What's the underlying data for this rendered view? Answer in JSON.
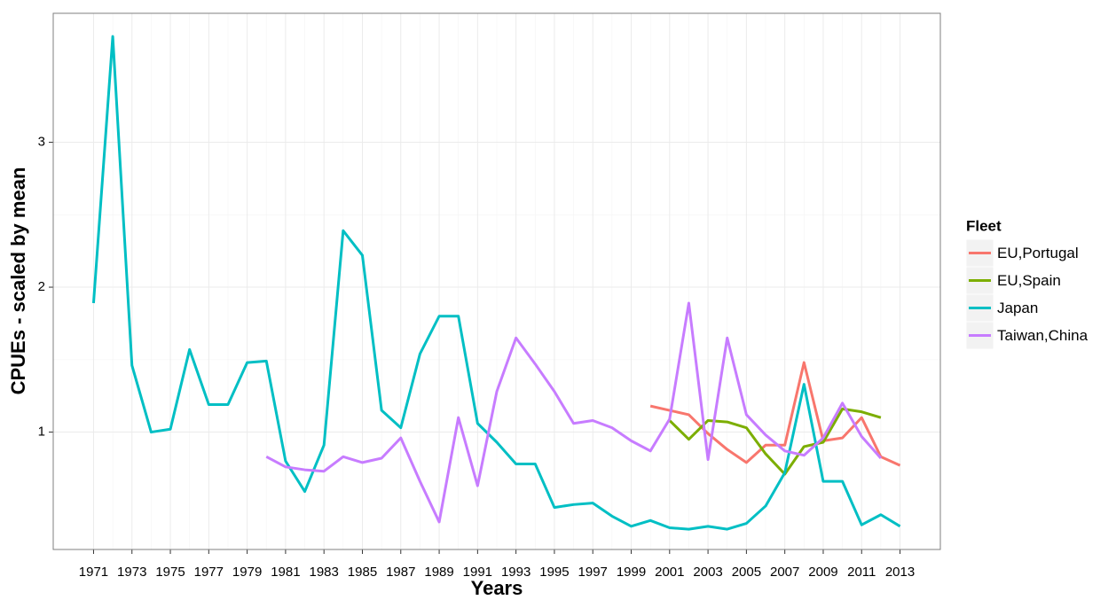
{
  "chart_data": {
    "type": "line",
    "x_label": "Years",
    "y_label": "CPUEs - scaled by mean",
    "x": [
      1971,
      1972,
      1973,
      1974,
      1975,
      1976,
      1977,
      1978,
      1979,
      1980,
      1981,
      1982,
      1983,
      1984,
      1985,
      1986,
      1987,
      1988,
      1989,
      1990,
      1991,
      1992,
      1993,
      1994,
      1995,
      1996,
      1997,
      1998,
      1999,
      2000,
      2001,
      2002,
      2003,
      2004,
      2005,
      2006,
      2007,
      2008,
      2009,
      2010,
      2011,
      2012,
      2013
    ],
    "series": [
      {
        "name": "EU,Portugal",
        "color": "#f8766d",
        "values": [
          null,
          null,
          null,
          null,
          null,
          null,
          null,
          null,
          null,
          null,
          null,
          null,
          null,
          null,
          null,
          null,
          null,
          null,
          null,
          null,
          null,
          null,
          null,
          null,
          null,
          null,
          null,
          null,
          null,
          1.18,
          1.15,
          1.12,
          0.99,
          0.88,
          0.79,
          0.91,
          0.91,
          1.48,
          0.94,
          0.96,
          1.1,
          0.83,
          0.77
        ]
      },
      {
        "name": "EU,Spain",
        "color": "#7cae00",
        "values": [
          null,
          null,
          null,
          null,
          null,
          null,
          null,
          null,
          null,
          null,
          null,
          null,
          null,
          null,
          null,
          null,
          null,
          null,
          null,
          null,
          null,
          null,
          null,
          null,
          null,
          null,
          null,
          null,
          null,
          null,
          1.08,
          0.95,
          1.08,
          1.07,
          1.03,
          0.85,
          0.71,
          0.9,
          0.93,
          1.16,
          1.14,
          1.1,
          null
        ]
      },
      {
        "name": "Japan",
        "color": "#00bfc4",
        "values": [
          1.89,
          3.73,
          1.46,
          1.0,
          1.02,
          1.57,
          1.19,
          1.19,
          1.48,
          1.49,
          0.8,
          0.59,
          0.91,
          2.39,
          2.22,
          1.15,
          1.03,
          1.54,
          1.8,
          1.8,
          1.06,
          0.93,
          0.78,
          0.78,
          0.48,
          0.5,
          0.51,
          0.42,
          0.35,
          0.39,
          0.34,
          0.33,
          0.35,
          0.33,
          0.37,
          0.49,
          0.72,
          1.33,
          0.66,
          0.66,
          0.36,
          0.43,
          0.35
        ]
      },
      {
        "name": "Taiwan,China",
        "color": "#c77cff",
        "values": [
          null,
          null,
          null,
          null,
          null,
          null,
          null,
          null,
          null,
          0.83,
          0.76,
          0.74,
          0.73,
          0.83,
          0.79,
          0.82,
          0.96,
          0.66,
          0.38,
          1.1,
          0.63,
          1.28,
          1.65,
          1.47,
          1.28,
          1.06,
          1.08,
          1.03,
          0.94,
          0.87,
          1.09,
          1.89,
          0.81,
          1.65,
          1.12,
          0.98,
          0.87,
          0.84,
          0.96,
          1.2,
          0.97,
          0.82,
          null
        ]
      }
    ],
    "legend_title": "Fleet",
    "legend": "right",
    "xlim": [
      1968.9,
      2015.1
    ],
    "xticks": [
      1971,
      1973,
      1975,
      1977,
      1979,
      1981,
      1983,
      1985,
      1987,
      1989,
      1991,
      1993,
      1995,
      1997,
      1999,
      2001,
      2003,
      2005,
      2007,
      2009,
      2011,
      2013
    ],
    "ylim": [
      0.19,
      3.89
    ],
    "yticks": [
      1,
      2,
      3
    ],
    "grid": true
  }
}
